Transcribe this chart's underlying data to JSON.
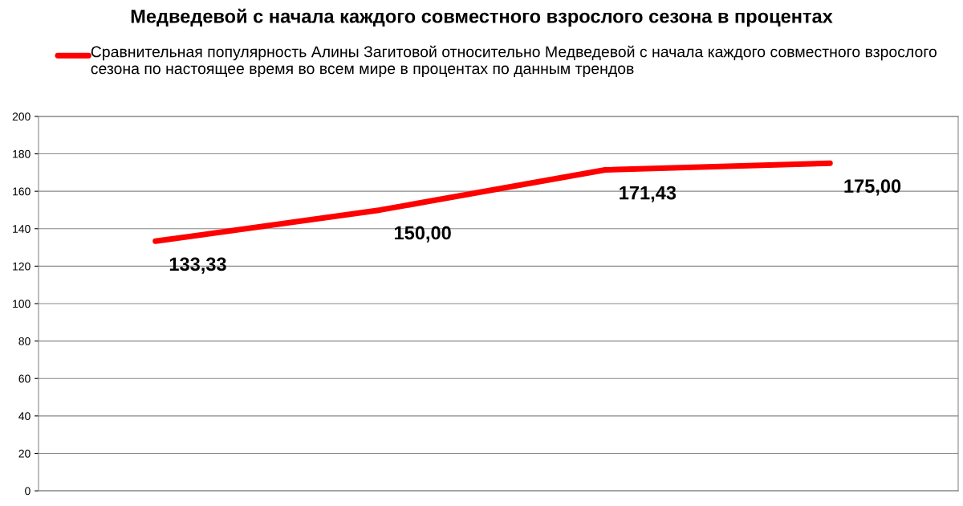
{
  "chart_data": {
    "type": "line",
    "title": "Медведевой с начала каждого совместного взрослого сезона в процентах",
    "categories": [
      null,
      null,
      null,
      null
    ],
    "series": [
      {
        "name": "Сравнительная популярность Алины Загитовой относительно Медведевой с начала каждого совместного взрослого сезона по настоящее время во всем мире в процентах по данным трендов",
        "color": "#ff0000",
        "values": [
          133.33,
          150.0,
          171.43,
          175.0
        ],
        "value_labels": [
          "133,33",
          "150,00",
          "171,43",
          "175,00"
        ]
      }
    ],
    "ylim": [
      0,
      200
    ],
    "yticks": [
      0,
      20,
      40,
      60,
      80,
      100,
      120,
      140,
      160,
      180,
      200
    ],
    "grid": "y",
    "legend": "top",
    "marker": "none",
    "line_style": "solid"
  }
}
